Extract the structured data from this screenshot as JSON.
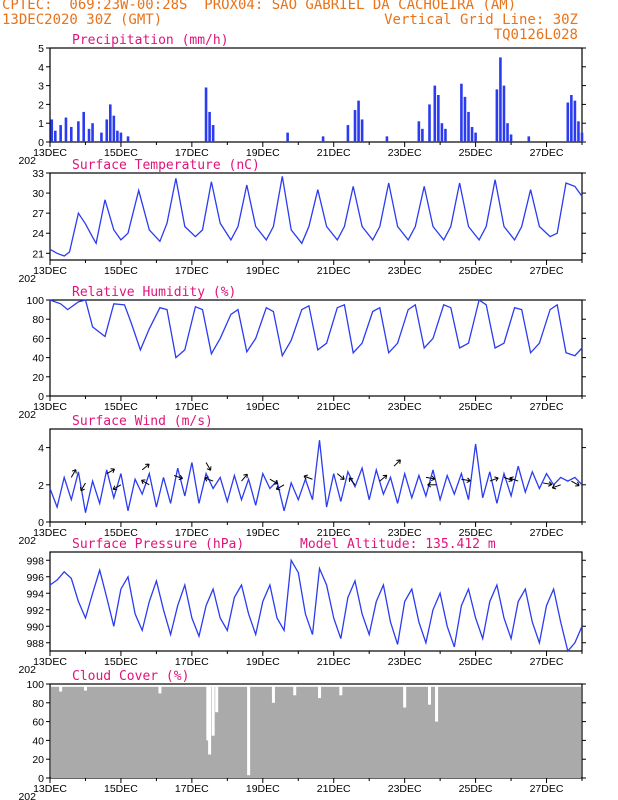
{
  "header": {
    "line1_left": "CPTEC:  069:23W-00:28S  PROX04: SAO GABRIEL DA CACHOEIRA (AM)",
    "line2_left": "13DEC2020 30Z (GMT)",
    "line2_right": "Vertical Grid Line: 30Z",
    "line3_right": "TQ0126L028"
  },
  "colors": {
    "header": "#e8731a",
    "title": "#e0147a",
    "series": "#2b3cf0",
    "cloud": "#aaaaaa"
  },
  "x_axis": {
    "start": "13DEC",
    "end": "28DEC",
    "tick_labels": [
      "13DEC",
      "15DEC",
      "17DEC",
      "19DEC",
      "21DEC",
      "23DEC",
      "25DEC",
      "27DEC"
    ],
    "year_fragment": "202"
  },
  "chart_data": [
    {
      "type": "bar",
      "title": "Precipitation (mm/h)",
      "ylim": [
        0,
        5
      ],
      "yticks": [
        0,
        1,
        2,
        3,
        4,
        5
      ],
      "grid": false,
      "x_unit": "days since 13DEC",
      "events": [
        {
          "x": 0.05,
          "value": 1.2
        },
        {
          "x": 0.15,
          "value": 0.6
        },
        {
          "x": 0.3,
          "value": 0.9
        },
        {
          "x": 0.45,
          "value": 1.3
        },
        {
          "x": 0.6,
          "value": 0.8
        },
        {
          "x": 0.8,
          "value": 1.1
        },
        {
          "x": 0.95,
          "value": 1.6
        },
        {
          "x": 1.1,
          "value": 0.7
        },
        {
          "x": 1.2,
          "value": 1.0
        },
        {
          "x": 1.45,
          "value": 0.5
        },
        {
          "x": 1.6,
          "value": 1.2
        },
        {
          "x": 1.7,
          "value": 2.0
        },
        {
          "x": 1.8,
          "value": 1.4
        },
        {
          "x": 1.9,
          "value": 0.6
        },
        {
          "x": 2.0,
          "value": 0.5
        },
        {
          "x": 2.2,
          "value": 0.3
        },
        {
          "x": 4.4,
          "value": 2.9
        },
        {
          "x": 4.5,
          "value": 1.6
        },
        {
          "x": 4.6,
          "value": 0.9
        },
        {
          "x": 6.7,
          "value": 0.5
        },
        {
          "x": 7.7,
          "value": 0.3
        },
        {
          "x": 8.4,
          "value": 0.9
        },
        {
          "x": 8.6,
          "value": 1.7
        },
        {
          "x": 8.7,
          "value": 2.2
        },
        {
          "x": 8.8,
          "value": 1.2
        },
        {
          "x": 9.5,
          "value": 0.3
        },
        {
          "x": 10.4,
          "value": 1.1
        },
        {
          "x": 10.5,
          "value": 0.7
        },
        {
          "x": 10.7,
          "value": 2.0
        },
        {
          "x": 10.85,
          "value": 3.0
        },
        {
          "x": 10.95,
          "value": 2.5
        },
        {
          "x": 11.05,
          "value": 1.0
        },
        {
          "x": 11.15,
          "value": 0.7
        },
        {
          "x": 11.6,
          "value": 3.1
        },
        {
          "x": 11.7,
          "value": 2.4
        },
        {
          "x": 11.8,
          "value": 1.6
        },
        {
          "x": 11.9,
          "value": 0.8
        },
        {
          "x": 12.0,
          "value": 0.5
        },
        {
          "x": 12.6,
          "value": 2.8
        },
        {
          "x": 12.7,
          "value": 4.5
        },
        {
          "x": 12.8,
          "value": 3.0
        },
        {
          "x": 12.9,
          "value": 1.0
        },
        {
          "x": 13.0,
          "value": 0.4
        },
        {
          "x": 13.5,
          "value": 0.3
        },
        {
          "x": 14.6,
          "value": 2.1
        },
        {
          "x": 14.7,
          "value": 2.5
        },
        {
          "x": 14.8,
          "value": 2.2
        },
        {
          "x": 14.9,
          "value": 1.1
        },
        {
          "x": 15.0,
          "value": 0.5
        }
      ]
    },
    {
      "type": "line",
      "title": "Surface Temperature (nC)",
      "ylim": [
        20,
        33
      ],
      "yticks": [
        21,
        24,
        27,
        30,
        33
      ],
      "grid": false,
      "x_unit": "days since 13DEC",
      "x": [
        0.0,
        0.2,
        0.4,
        0.55,
        0.8,
        1.0,
        1.2,
        1.3,
        1.55,
        1.8,
        2.0,
        2.2,
        2.5,
        2.8,
        3.1,
        3.3,
        3.55,
        3.8,
        4.1,
        4.3,
        4.55,
        4.8,
        5.1,
        5.3,
        5.55,
        5.8,
        6.1,
        6.3,
        6.55,
        6.8,
        7.1,
        7.3,
        7.55,
        7.8,
        8.1,
        8.3,
        8.55,
        8.8,
        9.1,
        9.3,
        9.55,
        9.8,
        10.1,
        10.3,
        10.55,
        10.8,
        11.1,
        11.3,
        11.55,
        11.8,
        12.1,
        12.3,
        12.55,
        12.8,
        13.1,
        13.3,
        13.55,
        13.8,
        14.1,
        14.3,
        14.55,
        14.8,
        15.0
      ],
      "series": [
        {
          "values": [
            21.6,
            21.0,
            20.6,
            21.2,
            27.0,
            25.4,
            23.4,
            22.5,
            29.0,
            24.5,
            23.0,
            24.0,
            30.4,
            24.5,
            22.8,
            25.5,
            32.2,
            25.0,
            23.5,
            24.5,
            31.7,
            25.5,
            23.0,
            25.0,
            31.2,
            25.0,
            23.0,
            25.0,
            32.5,
            24.5,
            22.5,
            25.0,
            30.5,
            25.0,
            23.0,
            25.0,
            31.0,
            25.0,
            23.0,
            25.0,
            31.5,
            25.0,
            23.0,
            25.0,
            31.0,
            25.0,
            23.0,
            25.0,
            31.5,
            25.0,
            23.0,
            25.0,
            32.0,
            25.0,
            23.0,
            25.0,
            30.5,
            25.0,
            23.5,
            24.0,
            31.5,
            31.0,
            29.5
          ]
        }
      ]
    },
    {
      "type": "line",
      "title": "Relative Humidity (%)",
      "ylim": [
        0,
        100
      ],
      "yticks": [
        0,
        20,
        40,
        60,
        80,
        100
      ],
      "grid": false,
      "x_unit": "days since 13DEC",
      "x": [
        0.0,
        0.3,
        0.5,
        0.8,
        1.0,
        1.2,
        1.55,
        1.8,
        2.1,
        2.3,
        2.55,
        2.8,
        3.1,
        3.3,
        3.55,
        3.8,
        4.1,
        4.3,
        4.55,
        4.8,
        5.1,
        5.3,
        5.55,
        5.8,
        6.1,
        6.3,
        6.55,
        6.8,
        7.1,
        7.3,
        7.55,
        7.8,
        8.1,
        8.3,
        8.55,
        8.8,
        9.1,
        9.3,
        9.55,
        9.8,
        10.1,
        10.3,
        10.55,
        10.8,
        11.1,
        11.3,
        11.55,
        11.8,
        12.1,
        12.3,
        12.55,
        12.8,
        13.1,
        13.3,
        13.55,
        13.8,
        14.1,
        14.3,
        14.55,
        14.8,
        15.0
      ],
      "series": [
        {
          "values": [
            100,
            96,
            90,
            98,
            100,
            72,
            62,
            96,
            95,
            75,
            48,
            70,
            92,
            90,
            40,
            48,
            93,
            90,
            44,
            60,
            85,
            90,
            46,
            60,
            92,
            88,
            42,
            58,
            90,
            94,
            48,
            55,
            92,
            95,
            45,
            55,
            88,
            92,
            45,
            55,
            90,
            95,
            50,
            60,
            95,
            92,
            50,
            55,
            100,
            95,
            50,
            55,
            92,
            90,
            45,
            55,
            90,
            95,
            45,
            42,
            50
          ]
        }
      ]
    },
    {
      "type": "line",
      "title": "Surface Wind (m/s)",
      "ylim": [
        0,
        5
      ],
      "yticks": [
        0,
        2,
        4
      ],
      "grid": false,
      "x_unit": "days since 13DEC",
      "x": [
        0.0,
        0.2,
        0.4,
        0.6,
        0.8,
        1.0,
        1.2,
        1.4,
        1.6,
        1.8,
        2.0,
        2.2,
        2.4,
        2.6,
        2.8,
        3.0,
        3.2,
        3.4,
        3.6,
        3.8,
        4.0,
        4.2,
        4.4,
        4.6,
        4.8,
        5.0,
        5.2,
        5.4,
        5.6,
        5.8,
        6.0,
        6.2,
        6.4,
        6.6,
        6.8,
        7.0,
        7.2,
        7.4,
        7.6,
        7.8,
        8.0,
        8.2,
        8.4,
        8.6,
        8.8,
        9.0,
        9.2,
        9.4,
        9.6,
        9.8,
        10.0,
        10.2,
        10.4,
        10.6,
        10.8,
        11.0,
        11.2,
        11.4,
        11.6,
        11.8,
        12.0,
        12.2,
        12.4,
        12.6,
        12.8,
        13.0,
        13.2,
        13.4,
        13.6,
        13.8,
        14.0,
        14.2,
        14.4,
        14.6,
        14.8,
        15.0
      ],
      "series": [
        {
          "values": [
            1.8,
            0.8,
            2.4,
            1.2,
            2.7,
            0.5,
            2.2,
            1.0,
            2.8,
            1.3,
            2.6,
            0.6,
            2.3,
            1.5,
            2.6,
            0.8,
            2.4,
            1.0,
            2.9,
            1.4,
            3.2,
            1.0,
            2.6,
            1.8,
            2.4,
            1.1,
            2.5,
            1.2,
            2.3,
            0.9,
            2.6,
            1.8,
            2.2,
            0.6,
            2.1,
            1.2,
            2.3,
            1.2,
            4.4,
            0.8,
            2.6,
            1.1,
            2.7,
            1.9,
            2.9,
            1.2,
            2.8,
            1.5,
            2.4,
            1.0,
            2.6,
            1.3,
            2.5,
            1.4,
            2.8,
            1.2,
            2.5,
            1.5,
            2.6,
            1.2,
            4.2,
            1.3,
            2.7,
            1.0,
            2.6,
            1.4,
            3.0,
            1.6,
            2.7,
            1.8,
            2.6,
            2.0,
            2.4,
            2.2,
            2.4,
            2.0
          ]
        }
      ],
      "wind_arrows": [
        {
          "x": 0.6,
          "v": 2.4,
          "dir": -60
        },
        {
          "x": 1.0,
          "v": 2.1,
          "dir": 120
        },
        {
          "x": 1.6,
          "v": 2.6,
          "dir": -30
        },
        {
          "x": 2.0,
          "v": 2.0,
          "dir": 150
        },
        {
          "x": 2.6,
          "v": 2.8,
          "dir": -40
        },
        {
          "x": 2.8,
          "v": 2.0,
          "dir": 210
        },
        {
          "x": 3.5,
          "v": 2.5,
          "dir": 20
        },
        {
          "x": 4.4,
          "v": 3.2,
          "dir": 60
        },
        {
          "x": 4.6,
          "v": 2.2,
          "dir": 200
        },
        {
          "x": 5.4,
          "v": 2.2,
          "dir": -50
        },
        {
          "x": 6.2,
          "v": 2.3,
          "dir": 30
        },
        {
          "x": 6.6,
          "v": 2.0,
          "dir": 150
        },
        {
          "x": 7.4,
          "v": 2.3,
          "dir": 200
        },
        {
          "x": 8.1,
          "v": 2.6,
          "dir": 40
        },
        {
          "x": 8.6,
          "v": 2.0,
          "dir": 230
        },
        {
          "x": 9.3,
          "v": 2.2,
          "dir": -40
        },
        {
          "x": 9.7,
          "v": 3.0,
          "dir": -45
        },
        {
          "x": 10.6,
          "v": 2.4,
          "dir": 10
        },
        {
          "x": 10.9,
          "v": 2.0,
          "dir": 180
        },
        {
          "x": 11.6,
          "v": 2.3,
          "dir": 10
        },
        {
          "x": 12.4,
          "v": 2.2,
          "dir": -20
        },
        {
          "x": 12.8,
          "v": 2.4,
          "dir": 20
        },
        {
          "x": 13.2,
          "v": 2.2,
          "dir": 200
        },
        {
          "x": 13.9,
          "v": 2.1,
          "dir": 10
        },
        {
          "x": 14.4,
          "v": 2.0,
          "dir": 160
        },
        {
          "x": 14.7,
          "v": 2.2,
          "dir": 30
        }
      ]
    },
    {
      "type": "line",
      "title": "Surface Pressure (hPa)",
      "annotation": "Model Altitude: 135.412 m",
      "ylim": [
        987,
        999
      ],
      "yticks": [
        988,
        990,
        992,
        994,
        996,
        998
      ],
      "grid": false,
      "x_unit": "days since 13DEC",
      "x": [
        0.0,
        0.2,
        0.4,
        0.6,
        0.8,
        1.0,
        1.2,
        1.4,
        1.6,
        1.8,
        2.0,
        2.2,
        2.4,
        2.6,
        2.8,
        3.0,
        3.2,
        3.4,
        3.6,
        3.8,
        4.0,
        4.2,
        4.4,
        4.6,
        4.8,
        5.0,
        5.2,
        5.4,
        5.6,
        5.8,
        6.0,
        6.2,
        6.4,
        6.6,
        6.8,
        7.0,
        7.2,
        7.4,
        7.6,
        7.8,
        8.0,
        8.2,
        8.4,
        8.6,
        8.8,
        9.0,
        9.2,
        9.4,
        9.6,
        9.8,
        10.0,
        10.2,
        10.4,
        10.6,
        10.8,
        11.0,
        11.2,
        11.4,
        11.6,
        11.8,
        12.0,
        12.2,
        12.4,
        12.6,
        12.8,
        13.0,
        13.2,
        13.4,
        13.6,
        13.8,
        14.0,
        14.2,
        14.4,
        14.6,
        14.8,
        15.0
      ],
      "series": [
        {
          "values": [
            995.0,
            995.6,
            996.6,
            995.8,
            993.0,
            991.0,
            994.0,
            996.8,
            993.5,
            990.0,
            994.5,
            996.0,
            991.5,
            989.5,
            993.0,
            995.5,
            992.0,
            989.0,
            992.5,
            995.0,
            991.0,
            988.8,
            992.5,
            994.5,
            991.0,
            989.5,
            993.5,
            995.0,
            991.5,
            989.0,
            993.0,
            995.0,
            991.0,
            989.5,
            998.0,
            996.5,
            991.5,
            989.0,
            997.0,
            995.0,
            991.0,
            988.5,
            993.5,
            995.5,
            991.5,
            989.0,
            993.0,
            995.0,
            990.5,
            987.8,
            993.0,
            994.5,
            990.5,
            988.0,
            992.0,
            994.0,
            990.0,
            987.5,
            992.5,
            994.5,
            991.0,
            988.5,
            993.0,
            995.0,
            991.0,
            988.5,
            993.0,
            994.5,
            990.5,
            988.0,
            992.5,
            994.5,
            990.5,
            987.0,
            988.0,
            990.0
          ]
        }
      ]
    },
    {
      "type": "bar",
      "title": "Cloud Cover (%)",
      "ylim": [
        0,
        100
      ],
      "yticks": [
        0,
        20,
        40,
        60,
        80,
        100
      ],
      "grid": false,
      "x_unit": "days since 13DEC",
      "baseline": 97,
      "dips": [
        {
          "x": 0.3,
          "value": 92
        },
        {
          "x": 1.0,
          "value": 93
        },
        {
          "x": 3.1,
          "value": 90
        },
        {
          "x": 4.45,
          "value": 40
        },
        {
          "x": 4.5,
          "value": 25
        },
        {
          "x": 4.6,
          "value": 45
        },
        {
          "x": 4.7,
          "value": 70
        },
        {
          "x": 5.6,
          "value": 3
        },
        {
          "x": 6.3,
          "value": 80
        },
        {
          "x": 6.9,
          "value": 88
        },
        {
          "x": 7.6,
          "value": 85
        },
        {
          "x": 8.2,
          "value": 88
        },
        {
          "x": 10.0,
          "value": 75
        },
        {
          "x": 10.7,
          "value": 78
        },
        {
          "x": 10.9,
          "value": 60
        }
      ]
    }
  ]
}
